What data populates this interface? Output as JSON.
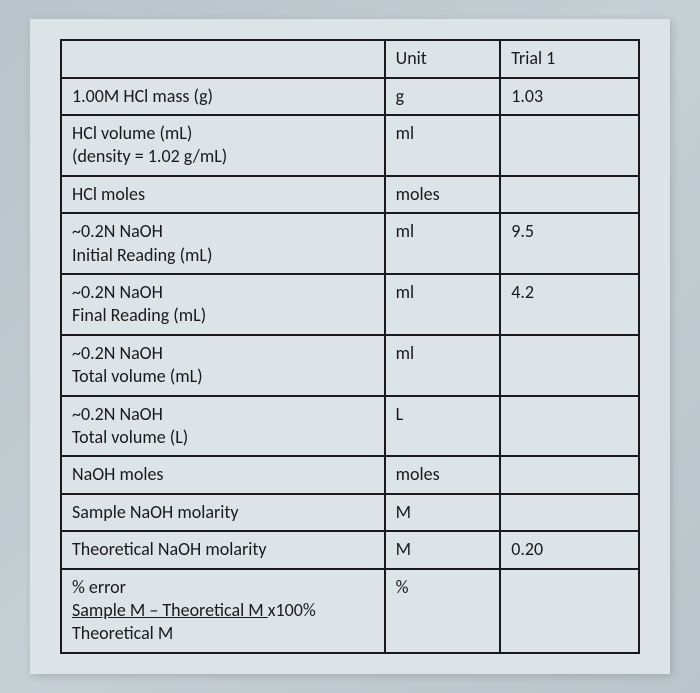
{
  "table": {
    "background_color": "#dde4e7",
    "border_color": "#1a1a1a",
    "text_color": "#1a1a1a",
    "font_size": 18,
    "border_width": 2,
    "headers": {
      "unit": "Unit",
      "trial1": "Trial 1"
    },
    "rows": [
      {
        "desc": "1.00M HCl mass (g)",
        "unit": "g",
        "trial1": "1.03"
      },
      {
        "desc": "HCl volume (mL)\n(density = 1.02 g/mL)",
        "unit": "ml",
        "trial1": ""
      },
      {
        "desc": "HCl moles",
        "unit": "moles",
        "trial1": ""
      },
      {
        "desc": "~0.2N NaOH\nInitial Reading (mL)",
        "unit": "ml",
        "trial1": "9.5"
      },
      {
        "desc": "~0.2N NaOH\nFinal Reading (mL)",
        "unit": "ml",
        "trial1": "4.2"
      },
      {
        "desc": "~0.2N NaOH\nTotal volume (mL)",
        "unit": "ml",
        "trial1": ""
      },
      {
        "desc": "~0.2N NaOH\nTotal volume (L)",
        "unit": "L",
        "trial1": ""
      },
      {
        "desc": "NaOH moles",
        "unit": "moles",
        "trial1": ""
      },
      {
        "desc": "Sample NaOH molarity",
        "unit": "M",
        "trial1": ""
      },
      {
        "desc": "Theoretical NaOH molarity",
        "unit": "M",
        "trial1": "0.20"
      }
    ],
    "error_row": {
      "desc_line1": "% error",
      "desc_line2_underlined": "Sample M – Theoretical M ",
      "desc_line2_end": "x100%",
      "desc_line3": "Theoretical M",
      "unit": "%",
      "trial1": ""
    }
  }
}
